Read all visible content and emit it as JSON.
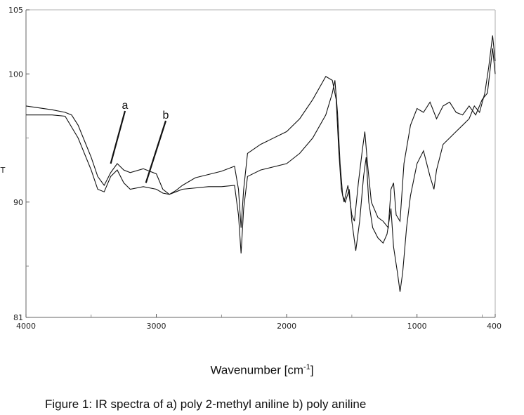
{
  "chart_data": {
    "type": "line",
    "xlabel_base": "Wavenumber [cm",
    "xlabel_sup": "-1",
    "xlabel_end": "]",
    "caption": "Figure 1: IR spectra of a) poly 2-methyl aniline b) poly aniline",
    "x_ticks": [
      "4000",
      "3000",
      "2000",
      "1000",
      "400"
    ],
    "y_ticks": [
      "105",
      "100",
      "90",
      "81"
    ],
    "y_axis_mark": "T",
    "xlim": [
      4000,
      400
    ],
    "ylim": [
      81,
      105
    ],
    "annotations": [
      {
        "label": "a",
        "points_to": [
          3350,
          93
        ]
      },
      {
        "label": "b",
        "points_to": [
          3080,
          91.5
        ]
      }
    ],
    "series": [
      {
        "points": [
          [
            4000,
            97.5
          ],
          [
            3800,
            97.2
          ],
          [
            3700,
            97.0
          ],
          [
            3650,
            96.8
          ],
          [
            3600,
            96.0
          ],
          [
            3500,
            93.5
          ],
          [
            3450,
            92.0
          ],
          [
            3400,
            91.3
          ],
          [
            3350,
            92.3
          ],
          [
            3300,
            93.0
          ],
          [
            3250,
            92.5
          ],
          [
            3200,
            92.3
          ],
          [
            3100,
            92.6
          ],
          [
            3000,
            92.2
          ],
          [
            2950,
            91.0
          ],
          [
            2900,
            90.6
          ],
          [
            2850,
            90.9
          ],
          [
            2800,
            91.3
          ],
          [
            2700,
            91.9
          ],
          [
            2500,
            92.4
          ],
          [
            2400,
            92.8
          ],
          [
            2370,
            91.0
          ],
          [
            2350,
            88.0
          ],
          [
            2330,
            91.0
          ],
          [
            2300,
            93.8
          ],
          [
            2200,
            94.5
          ],
          [
            2000,
            95.5
          ],
          [
            1900,
            96.5
          ],
          [
            1800,
            98.0
          ],
          [
            1700,
            99.8
          ],
          [
            1650,
            99.5
          ],
          [
            1620,
            98.0
          ],
          [
            1600,
            94.0
          ],
          [
            1580,
            91.0
          ],
          [
            1560,
            90.0
          ],
          [
            1530,
            91.3
          ],
          [
            1500,
            89.0
          ],
          [
            1480,
            88.5
          ],
          [
            1450,
            91.5
          ],
          [
            1420,
            94.0
          ],
          [
            1400,
            95.5
          ],
          [
            1380,
            93.0
          ],
          [
            1350,
            90.0
          ],
          [
            1300,
            88.8
          ],
          [
            1260,
            88.5
          ],
          [
            1220,
            88.0
          ],
          [
            1200,
            91.0
          ],
          [
            1180,
            91.5
          ],
          [
            1160,
            89.0
          ],
          [
            1130,
            88.5
          ],
          [
            1100,
            93.0
          ],
          [
            1050,
            96.0
          ],
          [
            1000,
            97.3
          ],
          [
            950,
            97.0
          ],
          [
            900,
            97.8
          ],
          [
            850,
            96.5
          ],
          [
            800,
            97.5
          ],
          [
            750,
            97.8
          ],
          [
            700,
            97.0
          ],
          [
            650,
            96.8
          ],
          [
            600,
            97.5
          ],
          [
            550,
            96.8
          ],
          [
            500,
            98.0
          ],
          [
            460,
            98.5
          ],
          [
            420,
            102.0
          ],
          [
            400,
            100.0
          ]
        ]
      },
      {
        "points": [
          [
            4000,
            96.8
          ],
          [
            3800,
            96.8
          ],
          [
            3700,
            96.7
          ],
          [
            3600,
            95.0
          ],
          [
            3500,
            92.5
          ],
          [
            3450,
            91.0
          ],
          [
            3400,
            90.8
          ],
          [
            3350,
            92.0
          ],
          [
            3300,
            92.5
          ],
          [
            3250,
            91.5
          ],
          [
            3200,
            91.0
          ],
          [
            3100,
            91.2
          ],
          [
            3000,
            91.0
          ],
          [
            2950,
            90.7
          ],
          [
            2900,
            90.6
          ],
          [
            2850,
            90.8
          ],
          [
            2800,
            91.0
          ],
          [
            2600,
            91.2
          ],
          [
            2500,
            91.2
          ],
          [
            2400,
            91.3
          ],
          [
            2370,
            89.0
          ],
          [
            2350,
            86.0
          ],
          [
            2330,
            89.5
          ],
          [
            2300,
            92.0
          ],
          [
            2200,
            92.5
          ],
          [
            2000,
            93.0
          ],
          [
            1900,
            93.8
          ],
          [
            1800,
            95.0
          ],
          [
            1700,
            96.8
          ],
          [
            1650,
            98.5
          ],
          [
            1630,
            99.5
          ],
          [
            1610,
            97.0
          ],
          [
            1590,
            93.0
          ],
          [
            1570,
            90.5
          ],
          [
            1550,
            90.0
          ],
          [
            1520,
            91.0
          ],
          [
            1500,
            88.5
          ],
          [
            1470,
            86.2
          ],
          [
            1440,
            88.5
          ],
          [
            1410,
            92.0
          ],
          [
            1390,
            93.5
          ],
          [
            1370,
            90.0
          ],
          [
            1340,
            88.0
          ],
          [
            1300,
            87.2
          ],
          [
            1260,
            86.8
          ],
          [
            1230,
            87.5
          ],
          [
            1200,
            89.5
          ],
          [
            1180,
            86.5
          ],
          [
            1150,
            84.5
          ],
          [
            1130,
            83.0
          ],
          [
            1110,
            84.5
          ],
          [
            1080,
            88.0
          ],
          [
            1050,
            90.5
          ],
          [
            1000,
            93.0
          ],
          [
            950,
            94.0
          ],
          [
            900,
            92.0
          ],
          [
            870,
            91.0
          ],
          [
            850,
            92.5
          ],
          [
            800,
            94.5
          ],
          [
            750,
            95.0
          ],
          [
            700,
            95.5
          ],
          [
            650,
            96.0
          ],
          [
            600,
            96.5
          ],
          [
            560,
            97.5
          ],
          [
            520,
            97.0
          ],
          [
            480,
            98.5
          ],
          [
            450,
            100.5
          ],
          [
            420,
            103.0
          ],
          [
            400,
            101.0
          ]
        ]
      }
    ]
  }
}
